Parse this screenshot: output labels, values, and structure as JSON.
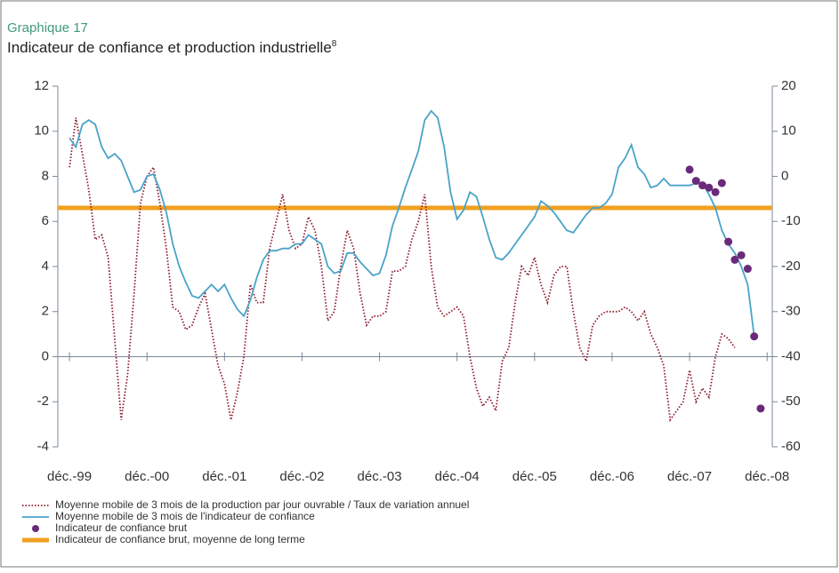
{
  "header": "Graphique 17",
  "chart_data": {
    "type": "line",
    "title": "Indicateur de confiance et production industrielle",
    "title_note": "8",
    "xlim": [
      -1.8,
      108.8
    ],
    "xticks": [
      {
        "value": 0,
        "label": "déc.-99"
      },
      {
        "value": 12,
        "label": "déc.-00"
      },
      {
        "value": 24,
        "label": "déc.-01"
      },
      {
        "value": 36,
        "label": "déc.-02"
      },
      {
        "value": 48,
        "label": "déc.-03"
      },
      {
        "value": 60,
        "label": "déc.-04"
      },
      {
        "value": 72,
        "label": "déc.-05"
      },
      {
        "value": 84,
        "label": "déc.-06"
      },
      {
        "value": 96,
        "label": "déc.-07"
      },
      {
        "value": 108,
        "label": "déc.-08"
      }
    ],
    "ylim": [
      -4,
      12
    ],
    "yticks": [
      -4,
      -2,
      0,
      2,
      4,
      6,
      8,
      10,
      12
    ],
    "y2lim": [
      -60,
      20
    ],
    "y2ticks": [
      -60,
      -50,
      -40,
      -30,
      -20,
      -10,
      0,
      10,
      20
    ],
    "grid": false,
    "series": [
      {
        "name": "Moyenne mobile de 3 mois de la production par jour ouvrable / Taux de variation annuel",
        "color": "#8b1a2a",
        "style": "dotted",
        "axis": "y2",
        "x": [
          0,
          1,
          2,
          3,
          4,
          5,
          6,
          7,
          8,
          9,
          10,
          11,
          12,
          13,
          14,
          15,
          16,
          17,
          18,
          19,
          20,
          21,
          22,
          23,
          24,
          25,
          26,
          27,
          28,
          29,
          30,
          31,
          32,
          33,
          34,
          35,
          36,
          37,
          38,
          39,
          40,
          41,
          42,
          43,
          44,
          45,
          46,
          47,
          48,
          49,
          50,
          51,
          52,
          53,
          54,
          55,
          56,
          57,
          58,
          59,
          60,
          61,
          62,
          63,
          64,
          65,
          66,
          67,
          68,
          69,
          70,
          71,
          72,
          73,
          74,
          75,
          76,
          77,
          78,
          79,
          80,
          81,
          82,
          83,
          84,
          85,
          86,
          87,
          88,
          89,
          90,
          91,
          92,
          93,
          94,
          95,
          96,
          97,
          98,
          99,
          100,
          101,
          102,
          103
        ],
        "values": [
          2,
          13,
          5,
          -3,
          -14,
          -13,
          -18,
          -36,
          -54,
          -44,
          -26,
          -6,
          0,
          2,
          -6,
          -16,
          -29,
          -30,
          -34,
          -33,
          -29,
          -26,
          -34,
          -42,
          -46,
          -54,
          -48,
          -40,
          -24,
          -28,
          -28,
          -16,
          -10,
          -4,
          -12,
          -16,
          -15,
          -9,
          -12,
          -20,
          -32,
          -30,
          -20,
          -12,
          -16,
          -26,
          -33,
          -31,
          -31,
          -30,
          -21,
          -21,
          -20,
          -14,
          -10,
          -4,
          -20,
          -29,
          -31,
          -30,
          -29,
          -31,
          -40,
          -47,
          -51,
          -49,
          -52,
          -41,
          -38,
          -28,
          -20,
          -22,
          -18,
          -24,
          -28,
          -22,
          -20,
          -20,
          -30,
          -38,
          -41,
          -33,
          -31,
          -30,
          -30,
          -30,
          -29,
          -30,
          -32,
          -30,
          -35,
          -38,
          -42,
          -54,
          -52,
          -50,
          -43,
          -50,
          -47,
          -49,
          -40,
          -35,
          -36,
          -38
        ]
      },
      {
        "name": "Moyenne mobile de 3 mois de l'indicateur de confiance",
        "color": "#4aa3c8",
        "style": "solid",
        "axis": "y",
        "x": [
          0,
          1,
          2,
          3,
          4,
          5,
          6,
          7,
          8,
          9,
          10,
          11,
          12,
          13,
          14,
          15,
          16,
          17,
          18,
          19,
          20,
          21,
          22,
          23,
          24,
          25,
          26,
          27,
          28,
          29,
          30,
          31,
          32,
          33,
          34,
          35,
          36,
          37,
          38,
          39,
          40,
          41,
          42,
          43,
          44,
          45,
          46,
          47,
          48,
          49,
          50,
          51,
          52,
          53,
          54,
          55,
          56,
          57,
          58,
          59,
          60,
          61,
          62,
          63,
          64,
          65,
          66,
          67,
          68,
          69,
          70,
          71,
          72,
          73,
          74,
          75,
          76,
          77,
          78,
          79,
          80,
          81,
          82,
          83,
          84,
          85,
          86,
          87,
          88,
          89,
          90,
          91,
          92,
          93,
          94,
          95,
          96,
          97,
          98,
          99,
          100,
          101,
          102,
          103,
          104,
          105,
          106
        ],
        "values": [
          9.7,
          9.3,
          10.3,
          10.5,
          10.3,
          9.3,
          8.8,
          9.0,
          8.7,
          8.0,
          7.3,
          7.4,
          8.0,
          8.1,
          7.4,
          6.4,
          5.0,
          4.0,
          3.3,
          2.7,
          2.6,
          2.9,
          3.2,
          2.9,
          3.2,
          2.6,
          2.1,
          1.8,
          2.5,
          3.5,
          4.3,
          4.7,
          4.7,
          4.8,
          4.8,
          5.0,
          5.0,
          5.4,
          5.2,
          5.0,
          4.0,
          3.7,
          3.8,
          4.6,
          4.6,
          4.2,
          3.9,
          3.6,
          3.7,
          4.5,
          5.8,
          6.6,
          7.5,
          8.3,
          9.1,
          10.5,
          10.9,
          10.6,
          9.3,
          7.3,
          6.1,
          6.5,
          7.3,
          7.1,
          6.2,
          5.2,
          4.4,
          4.3,
          4.6,
          5.0,
          5.4,
          5.8,
          6.2,
          6.9,
          6.7,
          6.4,
          6.0,
          5.6,
          5.5,
          5.9,
          6.3,
          6.6,
          6.6,
          6.8,
          7.2,
          8.4,
          8.8,
          9.4,
          8.4,
          8.1,
          7.5,
          7.6,
          7.9,
          7.6,
          7.6,
          7.6,
          7.6,
          7.7,
          7.7,
          7.2,
          6.6,
          5.6,
          5.0,
          4.6,
          4.0,
          3.2,
          0.9
        ]
      },
      {
        "name": "Indicateur de confiance brut",
        "color": "#6a2a7a",
        "style": "dots",
        "axis": "y",
        "x": [
          96,
          97,
          98,
          99,
          100,
          101,
          102,
          103,
          104,
          105,
          106,
          107
        ],
        "values": [
          8.3,
          7.8,
          7.6,
          7.5,
          7.3,
          7.7,
          5.1,
          4.3,
          4.5,
          3.9,
          0.9,
          -2.3
        ]
      }
    ],
    "reference_line": {
      "name": "Indicateur de confiance brut, moyenne de long terme",
      "color": "#f0a020",
      "value": 6.6
    }
  }
}
